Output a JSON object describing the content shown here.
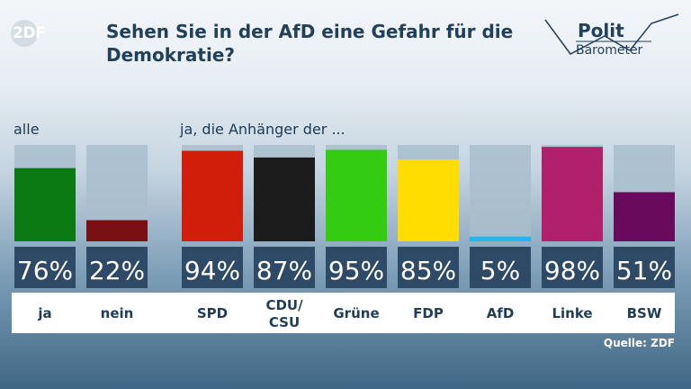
{
  "logo": {
    "text": "2DF"
  },
  "title": "Sehen Sie in der AfD eine Gefahr für die Demokratie?",
  "brand": {
    "line1": "Polit",
    "line2": "Barometer"
  },
  "groups": {
    "all_label": "alle",
    "parties_label": "ja, die Anhänger der ..."
  },
  "source": "Quelle: ZDF",
  "colors": {
    "track": "#a9bdcd",
    "value_box": "#2e4a66",
    "label_text": "#223e57"
  },
  "chart_data": {
    "type": "bar",
    "ylim": [
      0,
      100
    ],
    "categories": [
      "ja",
      "nein",
      "SPD",
      "CDU/\nCSU",
      "Grüne",
      "FDP",
      "AfD",
      "Linke",
      "BSW"
    ],
    "values": [
      76,
      22,
      94,
      87,
      95,
      85,
      5,
      98,
      51
    ],
    "value_labels": [
      "76%",
      "22%",
      "94%",
      "87%",
      "95%",
      "85%",
      "5%",
      "98%",
      "51%"
    ],
    "bar_colors": [
      "#0c7a12",
      "#7a1014",
      "#d11e0a",
      "#1c1c1c",
      "#33cc11",
      "#ffdd00",
      "#22b7ee",
      "#b1206a",
      "#6a0a5c"
    ]
  }
}
